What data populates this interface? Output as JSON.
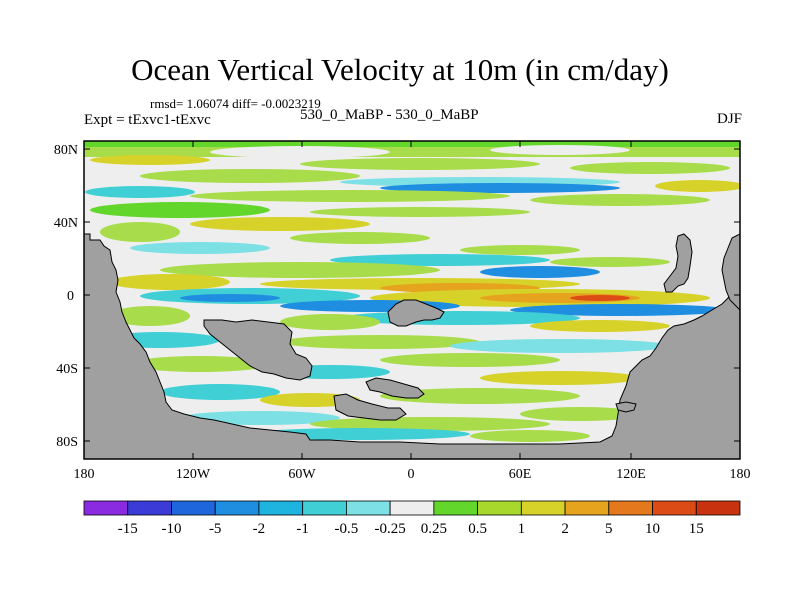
{
  "title": "Ocean Vertical Velocity at 10m (in cm/day)",
  "stats": "rmsd= 1.06074  diff= -0.0023219",
  "expt": "Expt = tExvc1-tExvc",
  "subtitle": "530_0_MaBP - 530_0_MaBP",
  "season": "DJF",
  "lat_ticks": [
    "80N",
    "40N",
    "0",
    "40S",
    "80S"
  ],
  "lon_ticks": [
    "180",
    "120W",
    "60W",
    "0",
    "60E",
    "120E",
    "180"
  ],
  "colorbar": {
    "labels": [
      "-15",
      "-10",
      "-5",
      "-2",
      "-1",
      "-0.5",
      "-0.25",
      "0.25",
      "0.5",
      "1",
      "2",
      "5",
      "10",
      "15"
    ],
    "colors": [
      "#8a2be2",
      "#3b3bd8",
      "#1e66dc",
      "#1f8ee0",
      "#1fb4e0",
      "#40cfd4",
      "#7de0e4",
      "#eeeeee",
      "#62d62a",
      "#a8d82c",
      "#d6d22a",
      "#e6a41e",
      "#e4781c",
      "#dc4a16",
      "#c8320e"
    ]
  },
  "palette": {
    "land": "#a0a0a0",
    "neutral": "#eeeeee",
    "light_green": "#a8dc4a",
    "green": "#62d62a",
    "yellow": "#d6d22a",
    "orange": "#e6a41e",
    "red": "#dc4a16",
    "light_blue": "#7de0e4",
    "cyan": "#40cfd4",
    "blue": "#1f8ee0",
    "deep_blue": "#1e66dc"
  }
}
